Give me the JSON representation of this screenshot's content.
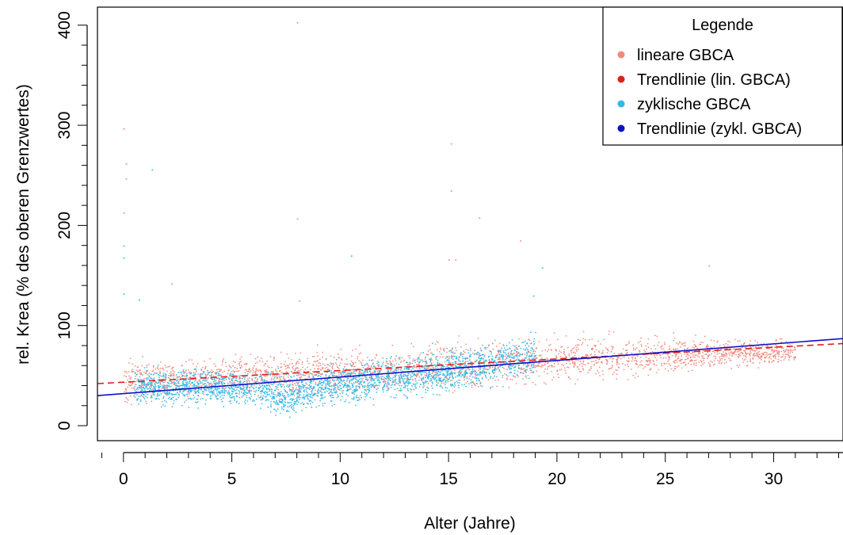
{
  "chart_data": {
    "type": "scatter",
    "xlabel": "Alter (Jahre)",
    "ylabel": "rel. Krea (% des oberen Grenzwertes)",
    "xlim": [
      -1.2,
      33.2
    ],
    "ylim": [
      -15,
      418
    ],
    "x_ticks": [
      0,
      5,
      10,
      15,
      20,
      25,
      30
    ],
    "y_ticks": [
      0,
      100,
      200,
      300,
      400
    ],
    "x_minor_step": 1,
    "y_minor_step": 20,
    "grid": false,
    "legend": {
      "title": "Legende",
      "placement": "top-right",
      "entries": [
        {
          "label": "lineare GBCA",
          "color": "#f08a7d"
        },
        {
          "label": "Trendlinie (lin. GBCA)",
          "color": "#e0201b"
        },
        {
          "label": "zyklische GBCA",
          "color": "#33b8e8"
        },
        {
          "label": "Trendlinie (zykl. GBCA)",
          "color": "#1010c8"
        }
      ]
    },
    "series": [
      {
        "name": "lineare GBCA",
        "kind": "points",
        "color": "#f08a7d",
        "density_profile": [
          {
            "x": 0,
            "y": 45,
            "spread": 18
          },
          {
            "x": 2,
            "y": 46,
            "spread": 17
          },
          {
            "x": 4,
            "y": 48,
            "spread": 16
          },
          {
            "x": 6,
            "y": 50,
            "spread": 16
          },
          {
            "x": 8,
            "y": 52,
            "spread": 17
          },
          {
            "x": 10,
            "y": 54,
            "spread": 18
          },
          {
            "x": 12,
            "y": 55,
            "spread": 18
          },
          {
            "x": 14,
            "y": 58,
            "spread": 19
          },
          {
            "x": 16,
            "y": 60,
            "spread": 20
          },
          {
            "x": 18,
            "y": 64,
            "spread": 20
          },
          {
            "x": 20,
            "y": 66,
            "spread": 18
          },
          {
            "x": 22,
            "y": 68,
            "spread": 17
          },
          {
            "x": 24,
            "y": 70,
            "spread": 16
          },
          {
            "x": 26,
            "y": 72,
            "spread": 14
          },
          {
            "x": 28,
            "y": 74,
            "spread": 12
          },
          {
            "x": 31,
            "y": 74,
            "spread": 10
          }
        ],
        "outliers": [
          {
            "x": 0.0,
            "y": 297
          },
          {
            "x": 0.1,
            "y": 262
          },
          {
            "x": 0.1,
            "y": 247
          },
          {
            "x": 0.0,
            "y": 213
          },
          {
            "x": 8.0,
            "y": 403
          },
          {
            "x": 8.0,
            "y": 207
          },
          {
            "x": 15.1,
            "y": 282
          },
          {
            "x": 15.1,
            "y": 235
          },
          {
            "x": 16.4,
            "y": 208
          },
          {
            "x": 18.3,
            "y": 185
          },
          {
            "x": 15.0,
            "y": 166
          },
          {
            "x": 15.3,
            "y": 166
          },
          {
            "x": 27.0,
            "y": 160
          },
          {
            "x": 2.2,
            "y": 142
          },
          {
            "x": 8.1,
            "y": 125
          }
        ]
      },
      {
        "name": "zyklische GBCA",
        "kind": "points",
        "color": "#33b8e8",
        "density_profile": [
          {
            "x": 0.5,
            "y": 40,
            "spread": 14
          },
          {
            "x": 2,
            "y": 38,
            "spread": 14
          },
          {
            "x": 4,
            "y": 40,
            "spread": 14
          },
          {
            "x": 6,
            "y": 38,
            "spread": 15
          },
          {
            "x": 7.5,
            "y": 30,
            "spread": 16
          },
          {
            "x": 9,
            "y": 40,
            "spread": 16
          },
          {
            "x": 11,
            "y": 45,
            "spread": 17
          },
          {
            "x": 13,
            "y": 50,
            "spread": 17
          },
          {
            "x": 15,
            "y": 55,
            "spread": 18
          },
          {
            "x": 17,
            "y": 62,
            "spread": 18
          },
          {
            "x": 19,
            "y": 70,
            "spread": 20
          }
        ],
        "outliers": [
          {
            "x": 1.3,
            "y": 256
          },
          {
            "x": 0.0,
            "y": 180
          },
          {
            "x": 0.0,
            "y": 168
          },
          {
            "x": 0.0,
            "y": 132
          },
          {
            "x": 0.7,
            "y": 126
          },
          {
            "x": 10.5,
            "y": 170
          },
          {
            "x": 19.3,
            "y": 158
          },
          {
            "x": 18.9,
            "y": 130
          }
        ]
      },
      {
        "name": "Trendlinie (lin. GBCA)",
        "kind": "line",
        "style": "dashed",
        "color": "#e0201b",
        "x": [
          -1.2,
          33.2
        ],
        "y": [
          42,
          82
        ]
      },
      {
        "name": "Trendlinie (zykl. GBCA)",
        "kind": "line",
        "style": "solid",
        "color": "#1010c8",
        "x": [
          -1.2,
          33.2
        ],
        "y": [
          30,
          87
        ]
      }
    ]
  }
}
